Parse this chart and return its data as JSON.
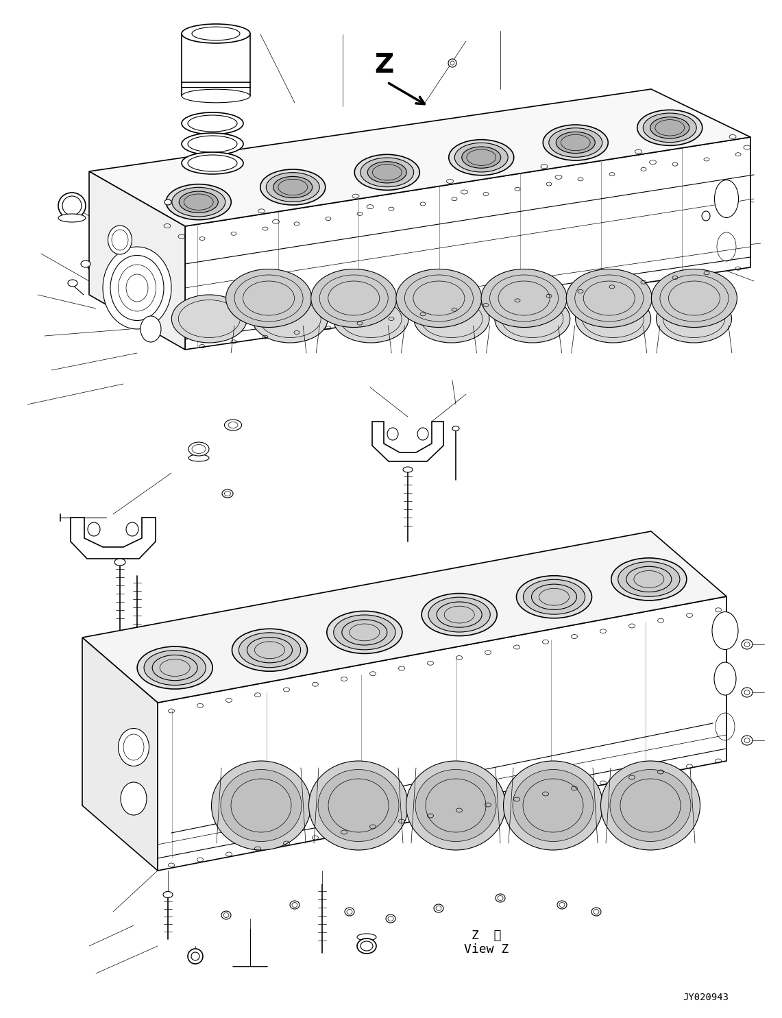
{
  "bg_color": "#ffffff",
  "line_color": "#000000",
  "view_label_text_1": "Z  視",
  "view_label_text_2": "View Z",
  "part_number": "JY020943",
  "z_letter": "Z",
  "figsize": [
    11.41,
    14.85
  ],
  "dpi": 100
}
